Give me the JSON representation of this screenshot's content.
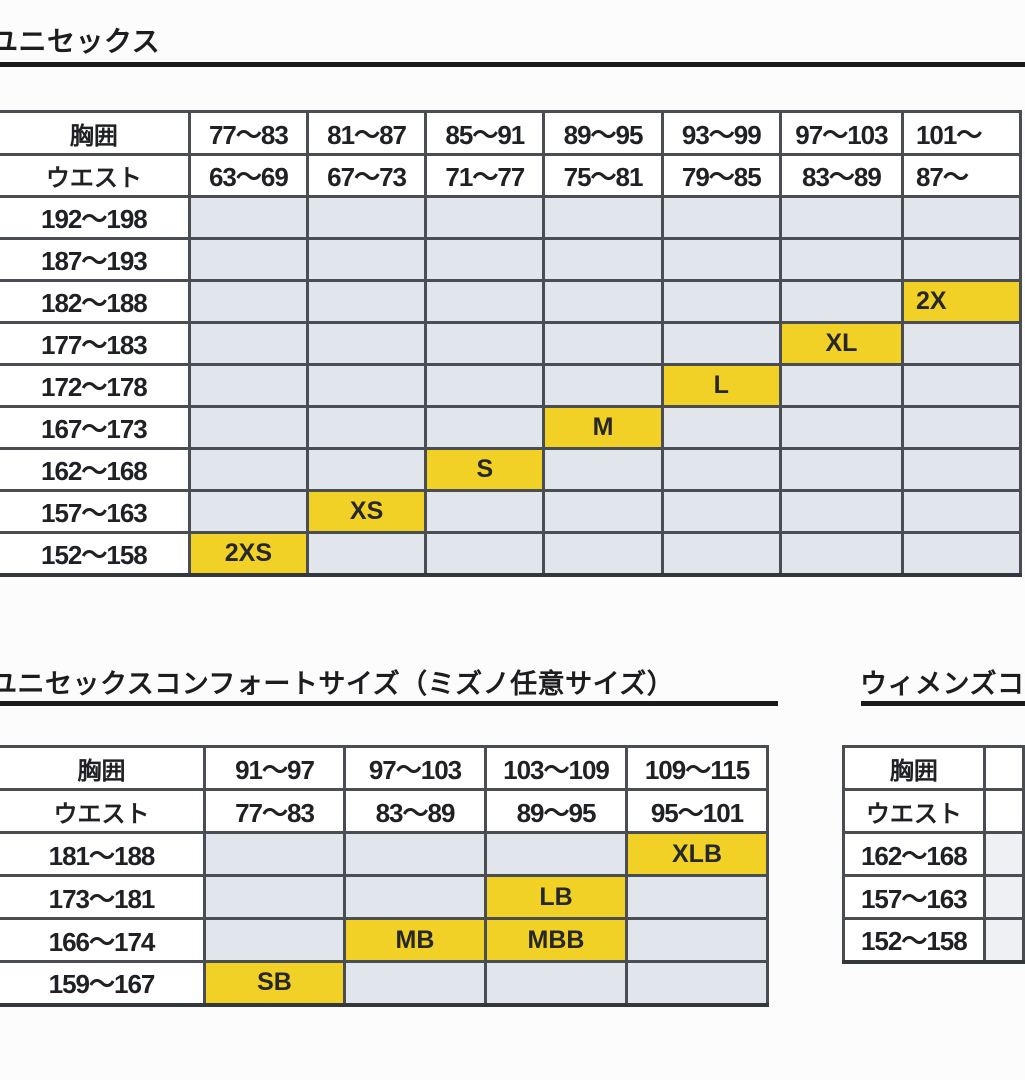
{
  "colors": {
    "highlight_yellow": "#f1d125",
    "cell_gray": "#e1e5ec",
    "grid_line": "#4a4d52",
    "rule_black": "#1b1b1b",
    "text": "#202124"
  },
  "sections": {
    "unisex": {
      "title": "ユニセックス",
      "table": {
        "col_headers": [
          {
            "label": "胸囲",
            "values": [
              "77～83",
              "81～87",
              "85～91",
              "89～95",
              "93～99",
              "97～103",
              "101～"
            ]
          },
          {
            "label": "ウエスト",
            "values": [
              "63～69",
              "67～73",
              "71～77",
              "75～81",
              "79～85",
              "83～89",
              "87～"
            ]
          }
        ],
        "rows": [
          {
            "label": "192～198",
            "sizes": [
              "",
              "",
              "",
              "",
              "",
              "",
              ""
            ]
          },
          {
            "label": "187～193",
            "sizes": [
              "",
              "",
              "",
              "",
              "",
              "",
              ""
            ]
          },
          {
            "label": "182～188",
            "sizes": [
              "",
              "",
              "",
              "",
              "",
              "",
              "2X"
            ]
          },
          {
            "label": "177～183",
            "sizes": [
              "",
              "",
              "",
              "",
              "",
              "XL",
              ""
            ]
          },
          {
            "label": "172～178",
            "sizes": [
              "",
              "",
              "",
              "",
              "L",
              "",
              ""
            ]
          },
          {
            "label": "167～173",
            "sizes": [
              "",
              "",
              "",
              "M",
              "",
              "",
              ""
            ]
          },
          {
            "label": "162～168",
            "sizes": [
              "",
              "",
              "S",
              "",
              "",
              "",
              ""
            ]
          },
          {
            "label": "157～163",
            "sizes": [
              "",
              "XS",
              "",
              "",
              "",
              "",
              ""
            ]
          },
          {
            "label": "152～158",
            "sizes": [
              "2XS",
              "",
              "",
              "",
              "",
              "",
              ""
            ]
          }
        ]
      }
    },
    "unisex_comfort": {
      "title": "ユニセックスコンフォートサイズ（ミズノ任意サイズ）",
      "table": {
        "col_headers": [
          {
            "label": "胸囲",
            "values": [
              "91～97",
              "97～103",
              "103～109",
              "109～115"
            ]
          },
          {
            "label": "ウエスト",
            "values": [
              "77～83",
              "83～89",
              "89～95",
              "95～101"
            ]
          }
        ],
        "rows": [
          {
            "label": "181～188",
            "sizes": [
              "",
              "",
              "",
              "XLB"
            ]
          },
          {
            "label": "173～181",
            "sizes": [
              "",
              "",
              "LB",
              ""
            ]
          },
          {
            "label": "166～174",
            "sizes": [
              "",
              "MB",
              "MBB",
              ""
            ]
          },
          {
            "label": "159～167",
            "sizes": [
              "SB",
              "",
              "",
              ""
            ]
          }
        ]
      }
    },
    "womens_comfort": {
      "title": "ウィメンズコン",
      "table": {
        "col_headers": [
          {
            "label": "胸囲",
            "values": [
              ""
            ]
          },
          {
            "label": "ウエスト",
            "values": [
              ""
            ]
          }
        ],
        "rows": [
          {
            "label": "162～168",
            "sizes": [
              ""
            ]
          },
          {
            "label": "157～163",
            "sizes": [
              ""
            ]
          },
          {
            "label": "152～158",
            "sizes": [
              ""
            ]
          }
        ]
      }
    }
  }
}
